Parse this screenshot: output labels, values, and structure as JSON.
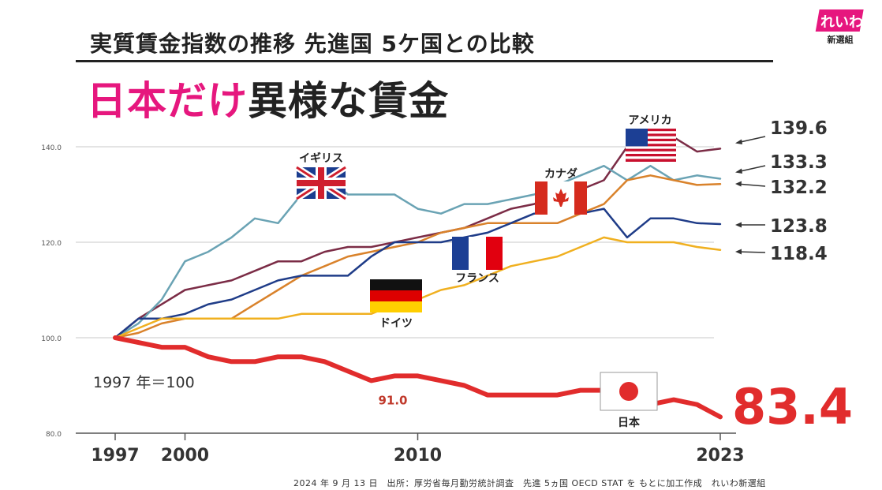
{
  "header": {
    "subtitle": "実質賃金指数の推移 先進国 5ケ国との比較",
    "headline_pink": "日本だけ",
    "headline_dark": "異様な賃金"
  },
  "logo": {
    "main": "れいわ",
    "sub": "新選組"
  },
  "source": "2024 年 9 月 13 日　出所：厚労省毎月勤労統計調査　先進 5ヵ国 OECD STAT を もとに加工作成　れいわ新選組",
  "colors": {
    "usa": "#7b2c46",
    "uk": "#6aa3b4",
    "canada": "#d9822b",
    "france": "#1f3c88",
    "germany": "#f0b020",
    "japan": "#e12c2c",
    "pink": "#e6177e"
  },
  "chart_data": {
    "type": "line",
    "ylim": [
      80,
      144
    ],
    "xlim": [
      1995.5,
      2024.5
    ],
    "y_ticks": [
      "80.0",
      "100.0",
      "120.0",
      "140.0"
    ],
    "y_tick_values": [
      80,
      100,
      120,
      140
    ],
    "x_ticks": [
      "1997",
      "2000",
      "2010",
      "2023"
    ],
    "x_tick_values": [
      1997,
      2000,
      2010,
      2023
    ],
    "base_note": "1997 年＝100",
    "series": [
      {
        "key": "usa",
        "name": "アメリカ",
        "final_label": "139.6",
        "x": [
          1997,
          1998,
          1999,
          2000,
          2001,
          2002,
          2003,
          2004,
          2005,
          2006,
          2007,
          2008,
          2009,
          2010,
          2011,
          2012,
          2013,
          2014,
          2015,
          2016,
          2017,
          2018,
          2019,
          2020,
          2021,
          2022,
          2023
        ],
        "values": [
          100,
          104,
          107,
          110,
          111,
          112,
          114,
          116,
          116,
          118,
          119,
          119,
          120,
          121,
          122,
          123,
          125,
          127,
          128,
          130,
          131,
          133,
          140,
          143,
          142,
          139,
          139.6
        ]
      },
      {
        "key": "uk",
        "name": "イギリス",
        "final_label": "133.3",
        "x": [
          1997,
          1998,
          1999,
          2000,
          2001,
          2002,
          2003,
          2004,
          2005,
          2006,
          2007,
          2008,
          2009,
          2010,
          2011,
          2012,
          2013,
          2014,
          2015,
          2016,
          2017,
          2018,
          2019,
          2020,
          2021,
          2022,
          2023
        ],
        "values": [
          100,
          103,
          108,
          116,
          118,
          121,
          125,
          124,
          130,
          134,
          130,
          130,
          130,
          127,
          126,
          128,
          128,
          129,
          130,
          132,
          134,
          136,
          133,
          136,
          133,
          134,
          133.3
        ]
      },
      {
        "key": "canada",
        "name": "カナダ",
        "final_label": "132.2",
        "x": [
          1997,
          1998,
          1999,
          2000,
          2001,
          2002,
          2003,
          2004,
          2005,
          2006,
          2007,
          2008,
          2009,
          2010,
          2011,
          2012,
          2013,
          2014,
          2015,
          2016,
          2017,
          2018,
          2019,
          2020,
          2021,
          2022,
          2023
        ],
        "values": [
          100,
          101,
          103,
          104,
          104,
          104,
          107,
          110,
          113,
          115,
          117,
          118,
          119,
          120,
          122,
          123,
          124,
          124,
          124,
          124,
          126,
          128,
          133,
          134,
          133,
          132,
          132.2
        ]
      },
      {
        "key": "france",
        "name": "フランス",
        "final_label": "123.8",
        "x": [
          1997,
          1998,
          1999,
          2000,
          2001,
          2002,
          2003,
          2004,
          2005,
          2006,
          2007,
          2008,
          2009,
          2010,
          2011,
          2012,
          2013,
          2014,
          2015,
          2016,
          2017,
          2018,
          2019,
          2020,
          2021,
          2022,
          2023
        ],
        "values": [
          100,
          104,
          104,
          105,
          107,
          108,
          110,
          112,
          113,
          113,
          113,
          117,
          120,
          120,
          120,
          121,
          122,
          124,
          126,
          126,
          126,
          127,
          121,
          125,
          125,
          124,
          123.8
        ]
      },
      {
        "key": "germany",
        "name": "ドイツ",
        "final_label": "118.4",
        "x": [
          1997,
          1998,
          1999,
          2000,
          2001,
          2002,
          2003,
          2004,
          2005,
          2006,
          2007,
          2008,
          2009,
          2010,
          2011,
          2012,
          2013,
          2014,
          2015,
          2016,
          2017,
          2018,
          2019,
          2020,
          2021,
          2022,
          2023
        ],
        "values": [
          100,
          102,
          104,
          104,
          104,
          104,
          104,
          104,
          105,
          105,
          105,
          105,
          107,
          108,
          110,
          111,
          113,
          115,
          116,
          117,
          119,
          121,
          120,
          120,
          120,
          119,
          118.4
        ]
      },
      {
        "key": "japan",
        "name": "日本",
        "final_label": "83.4",
        "x": [
          1997,
          1998,
          1999,
          2000,
          2001,
          2002,
          2003,
          2004,
          2005,
          2006,
          2007,
          2008,
          2009,
          2010,
          2011,
          2012,
          2013,
          2014,
          2015,
          2016,
          2017,
          2018,
          2019,
          2020,
          2021,
          2022,
          2023
        ],
        "values": [
          100,
          99,
          98,
          98,
          96,
          95,
          95,
          96,
          96,
          95,
          93,
          91,
          92,
          92,
          91,
          90,
          88,
          88,
          88,
          88,
          89,
          89,
          86,
          86,
          87,
          86,
          83.4
        ]
      }
    ],
    "annotations": [
      {
        "x": 2009,
        "y": 91.0,
        "text": "91.0"
      }
    ]
  }
}
